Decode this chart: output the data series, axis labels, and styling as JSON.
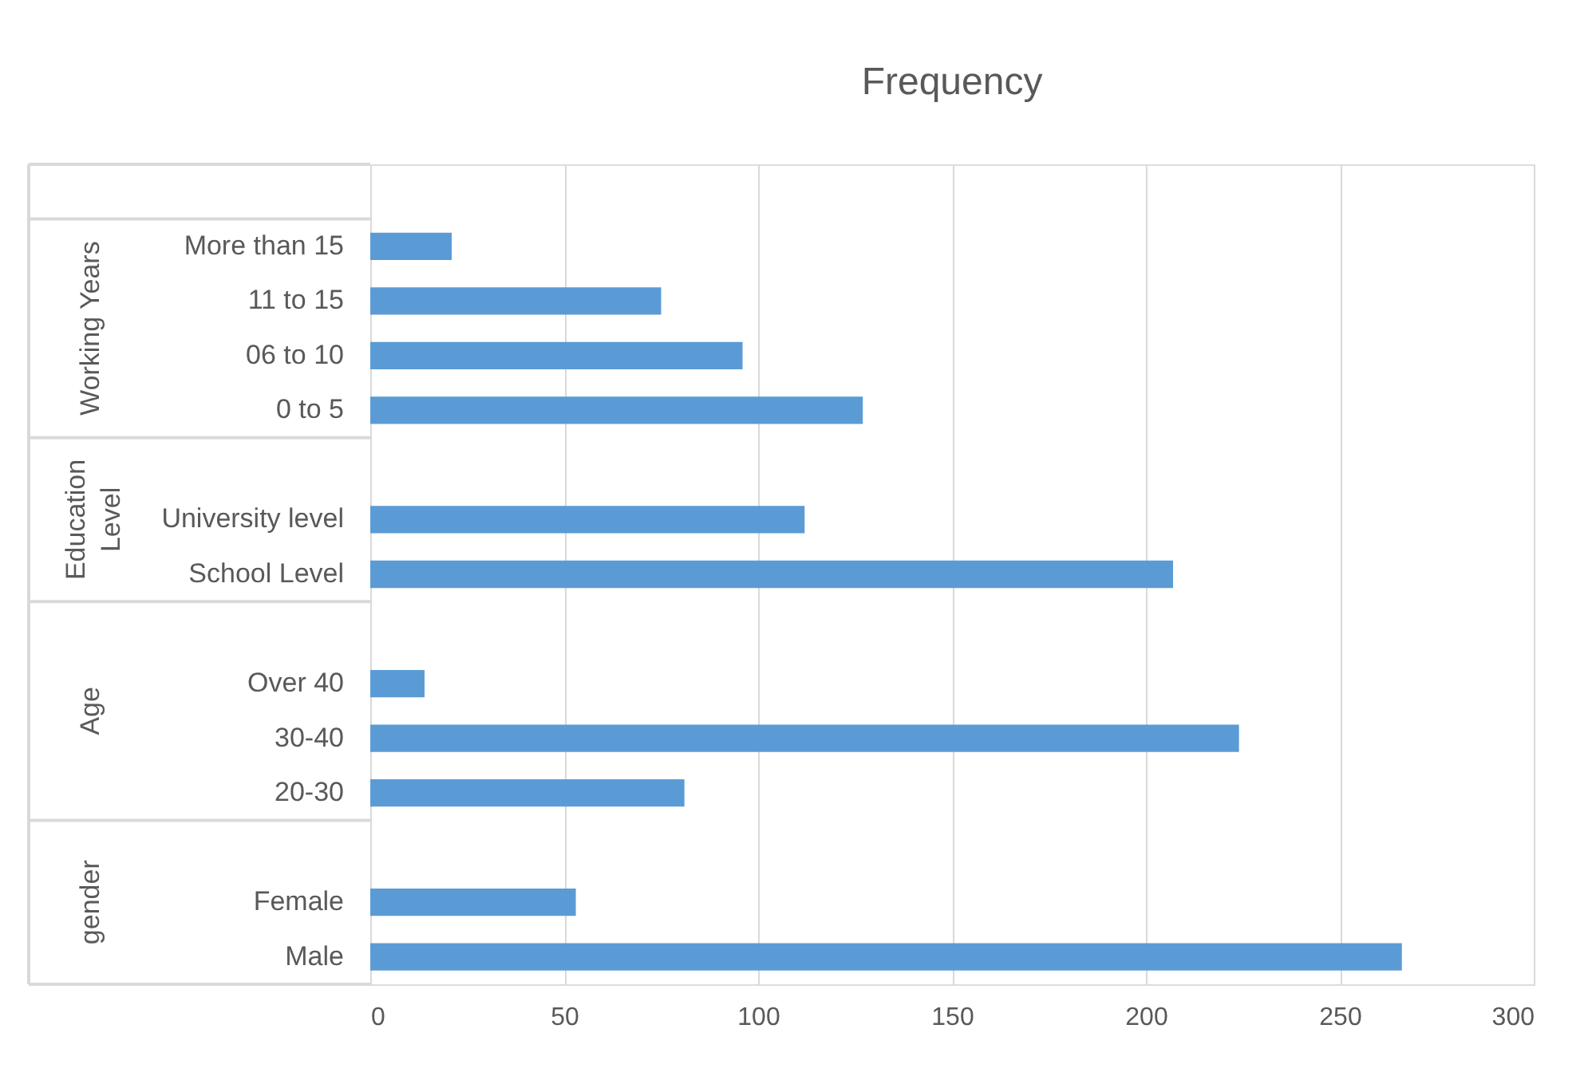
{
  "chart_data": {
    "type": "bar",
    "orientation": "horizontal",
    "title": "Frequency",
    "categories": [
      null,
      "More than 15",
      "11 to 15",
      "06 to 10",
      "0 to 5",
      null,
      "University level",
      "School Level",
      null,
      "Over 40",
      "30-40",
      "20-30",
      null,
      "Female",
      "Male"
    ],
    "values": [
      null,
      21,
      75,
      96,
      127,
      null,
      112,
      207,
      null,
      14,
      224,
      81,
      null,
      53,
      266
    ],
    "color": "#5b9bd5",
    "xlim": [
      0,
      300
    ],
    "xticks": [
      0,
      50,
      100,
      150,
      200,
      250,
      300
    ],
    "grid": "x",
    "annotations": [
      "Working Years",
      "Education Level",
      "Age",
      "gender"
    ]
  }
}
